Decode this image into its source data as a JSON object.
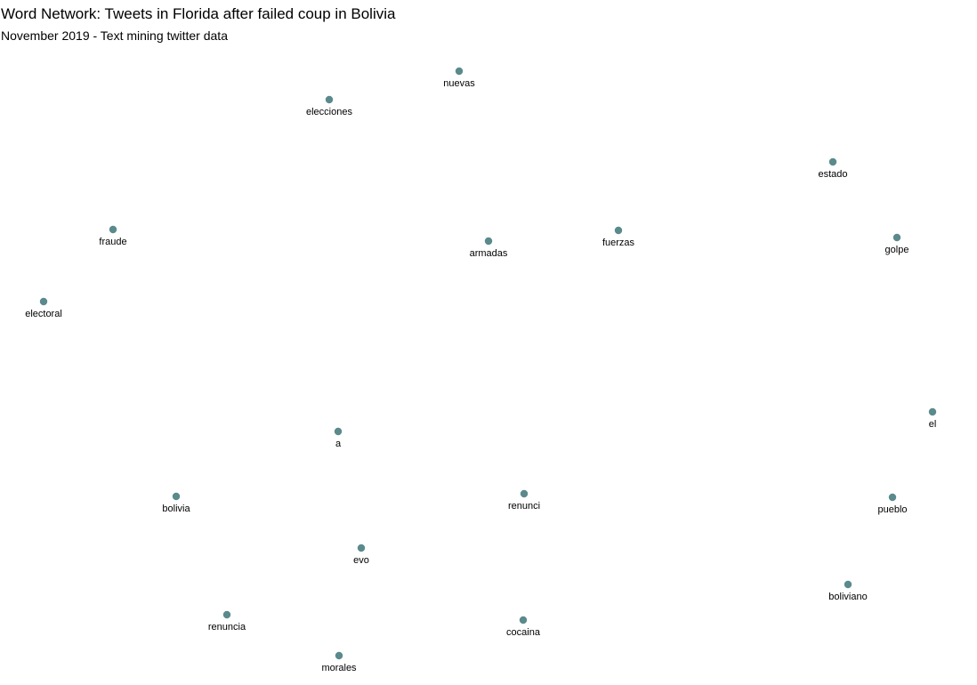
{
  "title": "Word Network: Tweets in Florida after failed coup in Bolivia",
  "subtitle": "November 2019 - Text mining twitter data",
  "node_color": "#5a8a8c",
  "nodes": [
    {
      "id": "nuevas",
      "label": "nuevas"
    },
    {
      "id": "elecciones",
      "label": "elecciones"
    },
    {
      "id": "estado",
      "label": "estado"
    },
    {
      "id": "fraude",
      "label": "fraude"
    },
    {
      "id": "armadas",
      "label": "armadas"
    },
    {
      "id": "fuerzas",
      "label": "fuerzas"
    },
    {
      "id": "golpe",
      "label": "golpe"
    },
    {
      "id": "electoral",
      "label": "electoral"
    },
    {
      "id": "el",
      "label": "el"
    },
    {
      "id": "a",
      "label": "a"
    },
    {
      "id": "bolivia",
      "label": "bolivia"
    },
    {
      "id": "renunci",
      "label": "renunci"
    },
    {
      "id": "pueblo",
      "label": "pueblo"
    },
    {
      "id": "evo",
      "label": "evo"
    },
    {
      "id": "boliviano",
      "label": "boliviano"
    },
    {
      "id": "renuncia",
      "label": "renuncia"
    },
    {
      "id": "cocaina",
      "label": "cocaina"
    },
    {
      "id": "morales",
      "label": "morales"
    }
  ]
}
